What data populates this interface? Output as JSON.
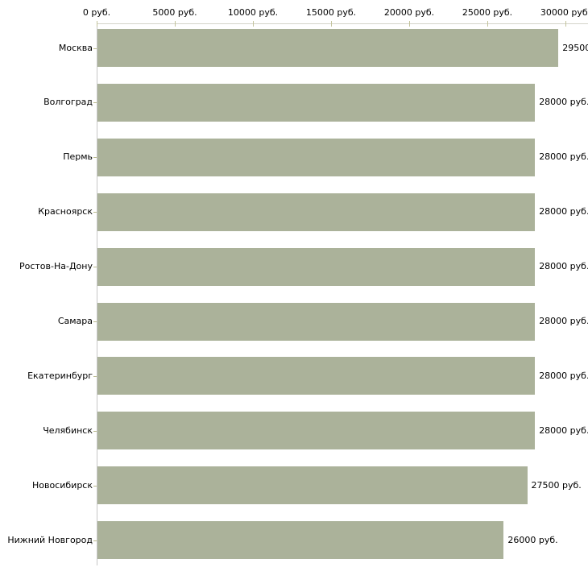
{
  "chart_data": {
    "type": "bar",
    "orientation": "horizontal",
    "title": "",
    "unit": "руб.",
    "categories": [
      "Москва",
      "Волгоград",
      "Пермь",
      "Красноярск",
      "Ростов-На-Дону",
      "Самара",
      "Екатеринбург",
      "Челябинск",
      "Новосибирск",
      "Нижний Новгород"
    ],
    "values": [
      29500,
      28000,
      28000,
      28000,
      28000,
      28000,
      28000,
      28000,
      27500,
      26000
    ],
    "value_labels": [
      "29500",
      "28000 руб.",
      "28000 руб.",
      "28000 руб.",
      "28000 руб.",
      "28000 руб.",
      "28000 руб.",
      "28000 руб.",
      "27500 руб.",
      "26000 руб."
    ],
    "x_axis": {
      "position": "top",
      "range": [
        0,
        30000
      ],
      "tick_values": [
        0,
        5000,
        10000,
        15000,
        20000,
        25000,
        30000
      ],
      "tick_labels": [
        "0 руб.",
        "5000 руб.",
        "10000 руб.",
        "15000 руб.",
        "20000 руб.",
        "25000 руб.",
        "30000 руб."
      ]
    },
    "legend": "none",
    "grid": "off",
    "colors": {
      "bar": "#abb29a",
      "axis_line": "#d4d4ca",
      "tick": "#c3c39b",
      "category_tick": "#b9b98c",
      "text": "#000000",
      "background": "#ffffff"
    }
  }
}
